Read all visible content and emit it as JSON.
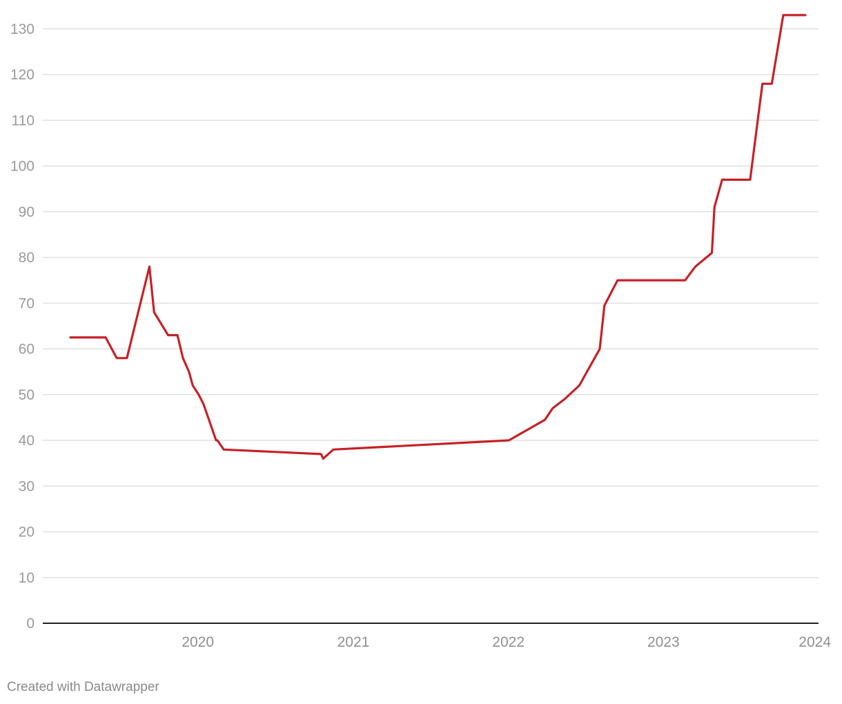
{
  "chart_data": {
    "type": "line",
    "title": "",
    "xlabel": "",
    "ylabel": "",
    "xlim": [
      "2019-01-01",
      "2024-01-01"
    ],
    "ylim": [
      0,
      133
    ],
    "y_ticks": [
      0,
      10,
      20,
      30,
      40,
      50,
      60,
      70,
      80,
      90,
      100,
      110,
      120,
      130
    ],
    "x_tick_labels": [
      "2020",
      "2021",
      "2022",
      "2023",
      "2024"
    ],
    "grid": true,
    "colors": {
      "line": "#c62127",
      "grid": "#e0e0e0",
      "axis": "#222222"
    },
    "series": [
      {
        "x": [
          "2019-03-07",
          "2019-05-29",
          "2019-06-24",
          "2019-07-18",
          "2019-09-09",
          "2019-09-20",
          "2019-10-23",
          "2019-11-14",
          "2019-11-27",
          "2019-12-11",
          "2019-12-20",
          "2020-01-03",
          "2020-01-14",
          "2020-01-29",
          "2020-02-13",
          "2020-02-16",
          "2020-03-02",
          "2020-10-17",
          "2020-10-22",
          "2020-11-15",
          "2022-01-02",
          "2022-03-28",
          "2022-04-15",
          "2022-05-13",
          "2022-06-17",
          "2022-08-04",
          "2022-08-15",
          "2022-09-15",
          "2023-02-21",
          "2023-03-17",
          "2023-04-25",
          "2023-05-01",
          "2023-05-19",
          "2023-07-24",
          "2023-08-22",
          "2023-09-13",
          "2023-10-10",
          "2023-12-01"
        ],
        "values": [
          62.5,
          62.5,
          58,
          58,
          78,
          68,
          63,
          63,
          58,
          55,
          52,
          50,
          48,
          44,
          40,
          40,
          38,
          37,
          36,
          38,
          40,
          44.5,
          47,
          49,
          52,
          60,
          69.5,
          75,
          75,
          78,
          81,
          91,
          97,
          97,
          118,
          118,
          133,
          133
        ]
      }
    ]
  },
  "footer": {
    "credit": "Created with Datawrapper"
  }
}
